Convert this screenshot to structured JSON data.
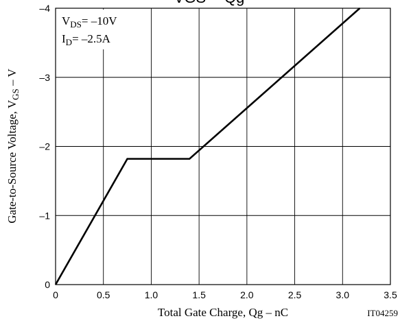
{
  "chart_data": {
    "type": "line",
    "title": "VGS -- Qg",
    "xlabel": "Total Gate Charge, Qg  –  nC",
    "ylabel_main": "Gate-to-Source Voltage, V",
    "ylabel_sub": "GS",
    "ylabel_tail": "  –  V",
    "xlim": [
      0,
      3.5
    ],
    "ylim": [
      0,
      -4
    ],
    "x_ticks": [
      "0",
      "0.5",
      "1.0",
      "1.5",
      "2.0",
      "2.5",
      "3.0",
      "3.5"
    ],
    "x_tick_values": [
      0,
      0.5,
      1.0,
      1.5,
      2.0,
      2.5,
      3.0,
      3.5
    ],
    "y_ticks": [
      "0",
      "–1",
      "–2",
      "–3",
      "–4"
    ],
    "y_tick_values": [
      0,
      -1,
      -2,
      -3,
      -4
    ],
    "grid": true,
    "series": [
      {
        "x": [
          0,
          0.75,
          1.4,
          3.18
        ],
        "y": [
          0,
          -1.82,
          -1.82,
          -4.0
        ]
      }
    ],
    "annotations": {
      "vds_main": "V",
      "vds_sub": "DS",
      "vds_value": "= –10V",
      "id_main": "I",
      "id_sub": "D",
      "id_value": "= –2.5A"
    },
    "figure_code": "IT04259"
  }
}
